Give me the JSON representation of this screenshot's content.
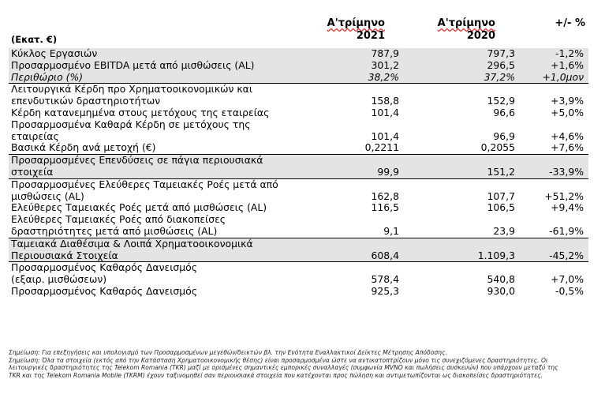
{
  "header": {
    "unit": "(Εκατ. €)",
    "col1_line1": "Α'τρίμηνο",
    "col1_line2": "2021",
    "col2_line1": "Α'τρίμηνο",
    "col2_line2": "2020",
    "col3": "+/- %"
  },
  "rows": [
    {
      "label": "Κύκλος Εργασιών",
      "v1": "787,9",
      "v2": "797,3",
      "v3": "-1,2%"
    },
    {
      "label": "Προσαρμοσμένο EBITDA μετά από μισθώσεις (AL)",
      "v1": "301,2",
      "v2": "296,5",
      "v3": "+1,6%"
    },
    {
      "label": "Περιθώριο (%)",
      "v1": "38,2%",
      "v2": "37,2%",
      "v3": "+1,0μον"
    },
    {
      "label": "Λειτουργικά Κέρδη προ Χρηματοοικονομικών και",
      "v1": "",
      "v2": "",
      "v3": ""
    },
    {
      "label": "επενδυτικών δραστηριοτήτων",
      "v1": "158,8",
      "v2": "152,9",
      "v3": "+3,9%"
    },
    {
      "label": "Κέρδη κατανεμημένα στους μετόχους της εταιρείας",
      "v1": "101,4",
      "v2": "96,6",
      "v3": "+5,0%"
    },
    {
      "label": "Προσαρμοσμένα Καθαρά Κέρδη σε μετόχους της",
      "v1": "",
      "v2": "",
      "v3": ""
    },
    {
      "label": "εταιρείας",
      "v1": "101,4",
      "v2": "96,9",
      "v3": "+4,6%"
    },
    {
      "label": "Βασικά Κέρδη ανά μετοχή (€)",
      "v1": "0,2211",
      "v2": "0,2055",
      "v3": "+7,6%"
    },
    {
      "label": "Προσαρμοσμένες Επενδύσεις σε πάγια περιουσιακά",
      "v1": "",
      "v2": "",
      "v3": ""
    },
    {
      "label": "στοιχεία",
      "v1": "99,9",
      "v2": "151,2",
      "v3": "-33,9%"
    },
    {
      "label": "Προσαρμοσμένες  Ελεύθερες Ταμειακές Ροές μετά από",
      "v1": "",
      "v2": "",
      "v3": ""
    },
    {
      "label": "μισθώσεις (AL)",
      "v1": "162,8",
      "v2": "107,7",
      "v3": "+51,2%"
    },
    {
      "label": "Ελεύθερες Ταμειακές Ροές μετά από μισθώσεις (AL)",
      "v1": "116,5",
      "v2": "106,5",
      "v3": "+9,4%"
    },
    {
      "label": "Ελεύθερες Ταμειακές Ροές από διακοπείσες",
      "v1": "",
      "v2": "",
      "v3": ""
    },
    {
      "label": "δραστηριότητες μετά από μισθώσεις (AL)",
      "v1": "9,1",
      "v2": "23,9",
      "v3": "-61,9%"
    },
    {
      "label": "Ταμειακά Διαθέσιμα & Λοιπά Χρηματοοικονομικά",
      "v1": "",
      "v2": "",
      "v3": ""
    },
    {
      "label": "Περιουσιακά Στοιχεία",
      "v1": "608,4",
      "v2": "1.109,3",
      "v3": "-45,2%"
    },
    {
      "label": "Προσαρμοσμένος Καθαρός Δανεισμός",
      "v1": "",
      "v2": "",
      "v3": ""
    },
    {
      "label": "(εξαιρ. μισθώσεων)",
      "v1": "578,4",
      "v2": "540,8",
      "v3": "+7,0%"
    },
    {
      "label": "Προσαρμοσμένος Καθαρός Δανεισμός",
      "v1": "925,3",
      "v2": "930,0",
      "v3": "-0,5%"
    }
  ],
  "notes": [
    "Σημείωση: Για επεξηγήσεις και υπολογισμό των Προσαρμοσμένων μεγεθών/δεικτών βλ. την Ενότητα Εναλλακτικοί Δείκτες Μέτρησης Απόδοσης.",
    "Σημείωση: Όλα τα στοιχεία (εκτός από την Κατάσταση Χρηματοοικονομικής θέσης) είναι προσαρμοσμένα ώστε να αντικατοπτρίζουν μόνο τις συνεχιζόμενες δραστηριότητες. Οι",
    "λειτουργικές δραστηριότητες της Telekom Romania (TKR) μαζί με ορισμένες σημαντικές εμπορικές συναλλαγές (συμφωνία MVNO και πωλήσεις συσκευών) που υπάρχουν μεταξύ της",
    "TKR και της Telekom Romania Mobile (TKRM) έχουν ταξινομηθεί σαν περιουσιακά στοιχεία που κατέχονται προς πώληση και αντιμετωπίζονται ως διακοπείσες δραστηριότητες."
  ]
}
